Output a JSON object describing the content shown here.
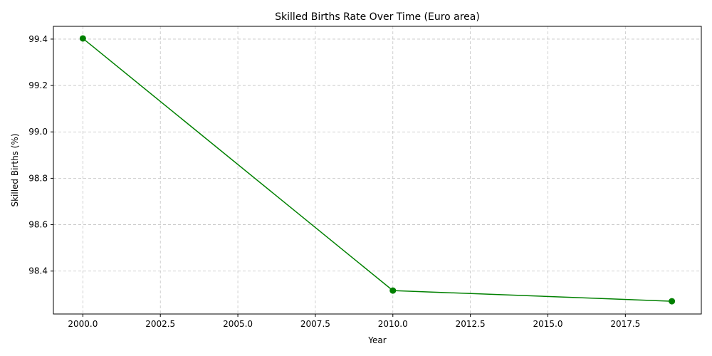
{
  "chart_data": {
    "type": "line",
    "title": "Skilled Births Rate Over Time (Euro area)",
    "xlabel": "Year",
    "ylabel": "Skilled Births (%)",
    "xlim": [
      1999.05,
      2019.95
    ],
    "ylim": [
      98.215,
      99.455
    ],
    "xticks": [
      2000.0,
      2002.5,
      2005.0,
      2007.5,
      2010.0,
      2012.5,
      2015.0,
      2017.5
    ],
    "xtick_labels": [
      "2000.0",
      "2002.5",
      "2005.0",
      "2007.5",
      "2010.0",
      "2012.5",
      "2015.0",
      "2017.5"
    ],
    "yticks": [
      98.4,
      98.6,
      98.8,
      99.0,
      99.2,
      99.4
    ],
    "ytick_labels": [
      "98.4",
      "98.6",
      "98.8",
      "99.0",
      "99.2",
      "99.4"
    ],
    "grid": true,
    "series": [
      {
        "color": "#008000",
        "marker": "circle",
        "x": [
          2000,
          2010,
          2019
        ],
        "y": [
          99.403,
          98.316,
          98.27
        ]
      }
    ]
  }
}
